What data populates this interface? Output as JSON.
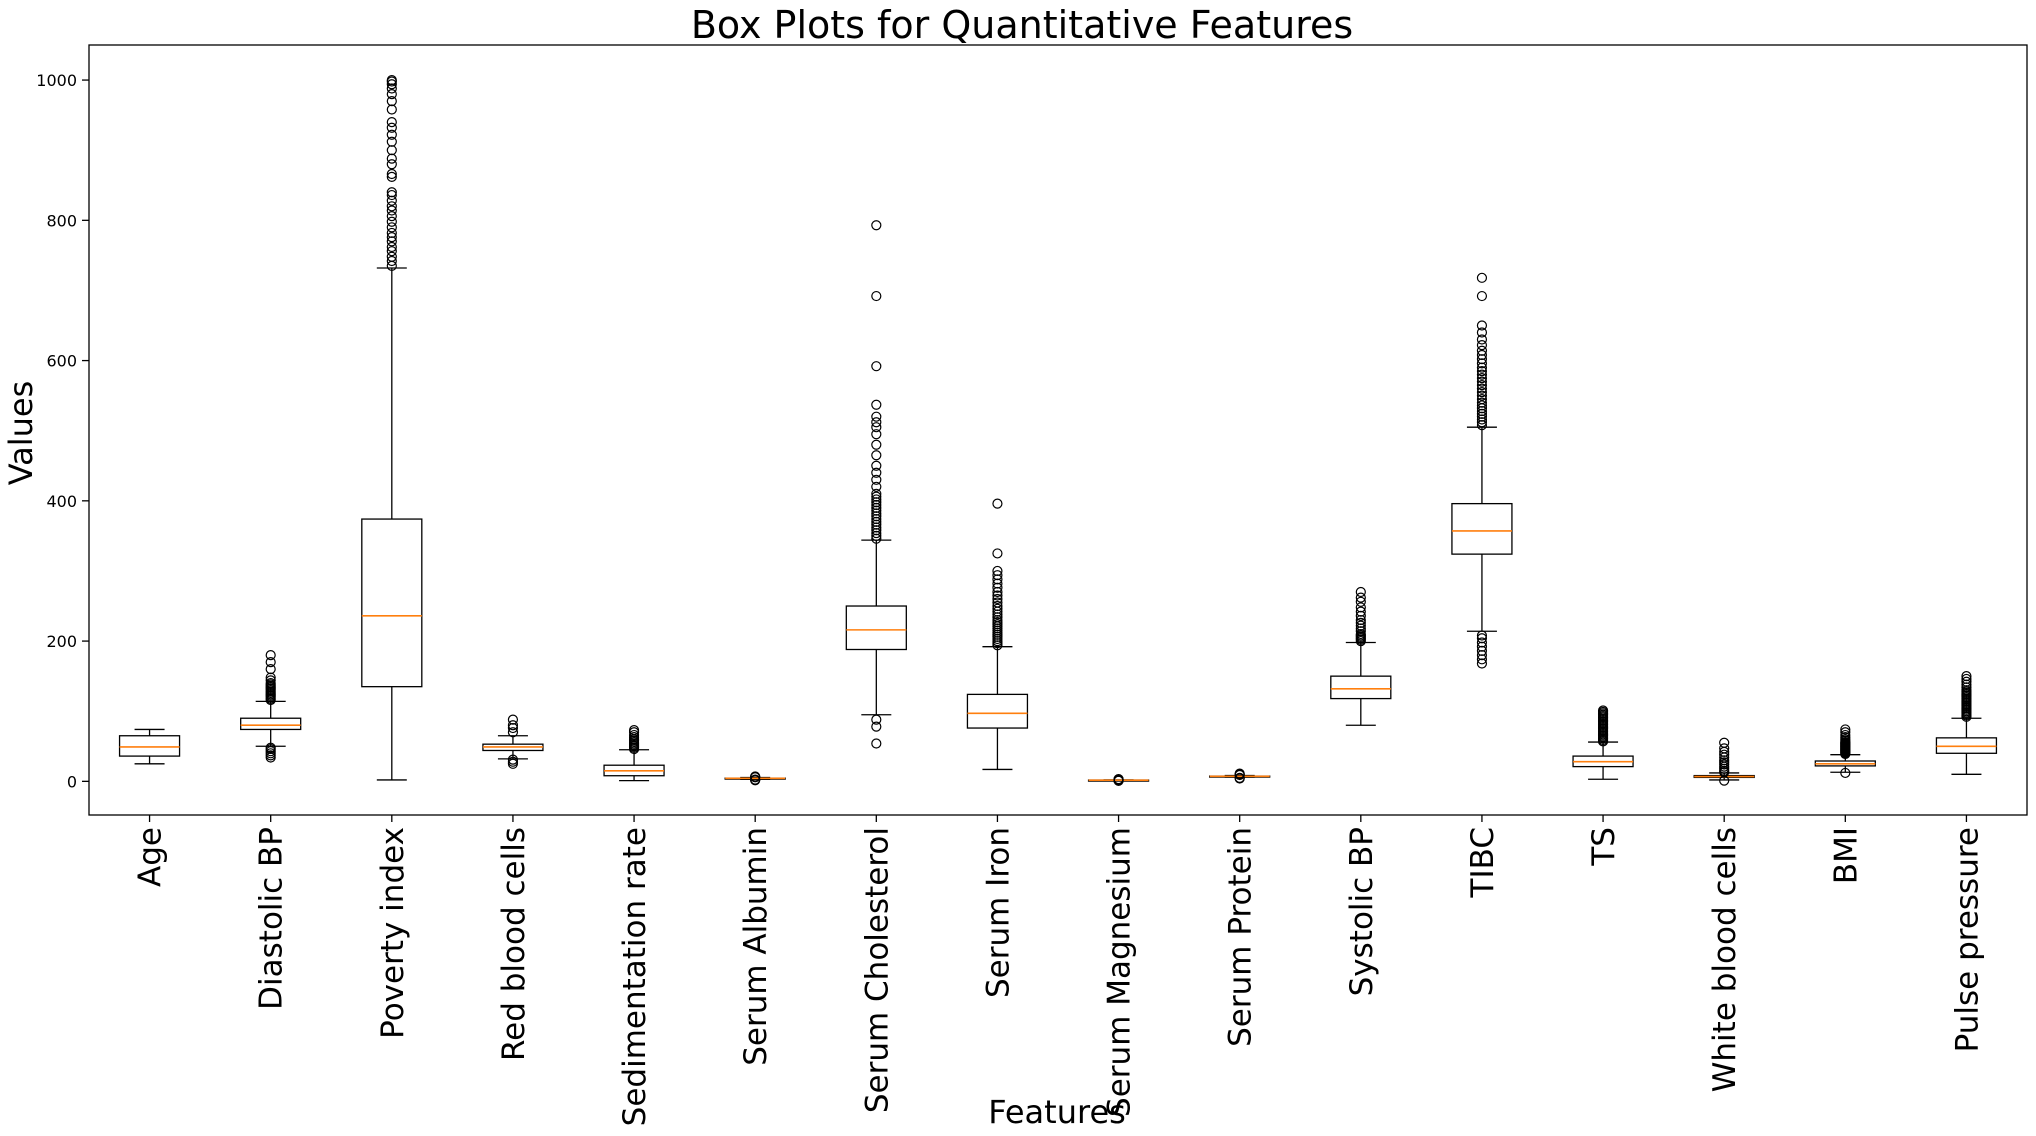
{
  "chart_data": {
    "type": "box",
    "title": "Box Plots for Quantitative Features",
    "xlabel": "Features",
    "ylabel": "Values",
    "ylim": [
      -48,
      1050
    ],
    "yticks": [
      0,
      200,
      400,
      600,
      800,
      1000
    ],
    "grid": false,
    "colors": {
      "box": "#000000",
      "median": "#ff7f0e",
      "flier": "#000000"
    },
    "categories": [
      "Age",
      "Diastolic BP",
      "Poverty index",
      "Red blood cells",
      "Sedimentation rate",
      "Serum Albumin",
      "Serum Cholesterol",
      "Serum Iron",
      "Serum Magnesium",
      "Serum Protein",
      "Systolic BP",
      "TIBC",
      "TS",
      "White blood cells",
      "BMI",
      "Pulse pressure"
    ],
    "series": [
      {
        "q1": 36,
        "median": 49,
        "q3": 65,
        "whisker_low": 25,
        "whisker_high": 74,
        "outliers": []
      },
      {
        "q1": 74,
        "median": 80,
        "q3": 90,
        "whisker_low": 50,
        "whisker_high": 114,
        "outliers": [
          34,
          37,
          40,
          43,
          46,
          48,
          116,
          118,
          120,
          122,
          124,
          126,
          128,
          130,
          132,
          134,
          136,
          138,
          140,
          144,
          148,
          160,
          170,
          180
        ]
      },
      {
        "q1": 135,
        "median": 236,
        "q3": 374,
        "whisker_low": 2,
        "whisker_high": 732,
        "outliers": [
          735,
          742,
          748,
          756,
          762,
          770,
          776,
          782,
          790,
          798,
          806,
          814,
          820,
          828,
          836,
          840,
          862,
          866,
          880,
          888,
          900,
          912,
          922,
          932,
          940,
          958,
          970,
          980,
          988,
          994,
          998,
          1000
        ]
      },
      {
        "q1": 44,
        "median": 49,
        "q3": 53,
        "whisker_low": 32,
        "whisker_high": 65,
        "outliers": [
          25,
          28,
          31,
          70,
          76,
          80,
          88
        ]
      },
      {
        "q1": 8,
        "median": 15,
        "q3": 23,
        "whisker_low": 1,
        "whisker_high": 45,
        "outliers": [
          46,
          48,
          50,
          52,
          54,
          56,
          58,
          60,
          63,
          66,
          70,
          73
        ]
      },
      {
        "q1": 3.9,
        "median": 4.3,
        "q3": 4.6,
        "whisker_low": 2.8,
        "whisker_high": 5.5,
        "outliers": [
          1.5,
          2,
          2.5,
          5.8,
          6.3,
          7
        ]
      },
      {
        "q1": 188,
        "median": 216,
        "q3": 250,
        "whisker_low": 95,
        "whisker_high": 344,
        "outliers": [
          54,
          78,
          88,
          346,
          350,
          354,
          358,
          362,
          366,
          370,
          374,
          378,
          382,
          386,
          390,
          394,
          398,
          402,
          406,
          410,
          420,
          430,
          440,
          450,
          465,
          480,
          495,
          505,
          512,
          520,
          537,
          592,
          692,
          793
        ]
      },
      {
        "q1": 76,
        "median": 97,
        "q3": 124,
        "whisker_low": 17,
        "whisker_high": 192,
        "outliers": [
          194,
          197,
          200,
          203,
          206,
          209,
          212,
          215,
          218,
          221,
          224,
          227,
          230,
          234,
          238,
          242,
          246,
          250,
          255,
          260,
          265,
          270,
          276,
          282,
          288,
          294,
          300,
          325,
          396
        ]
      },
      {
        "q1": 1.6,
        "median": 1.7,
        "q3": 1.8,
        "whisker_low": 1.3,
        "whisker_high": 2.1,
        "outliers": [
          0.8,
          1,
          2.4,
          2.8,
          3.2
        ]
      },
      {
        "q1": 6.9,
        "median": 7.2,
        "q3": 7.5,
        "whisker_low": 6.1,
        "whisker_high": 8.3,
        "outliers": [
          4,
          5,
          9,
          10,
          11
        ]
      },
      {
        "q1": 118,
        "median": 132,
        "q3": 150,
        "whisker_low": 80,
        "whisker_high": 198,
        "outliers": [
          200,
          202,
          204,
          206,
          208,
          210,
          214,
          218,
          222,
          226,
          230,
          236,
          242,
          248,
          256,
          262,
          270
        ]
      },
      {
        "q1": 324,
        "median": 357,
        "q3": 396,
        "whisker_low": 214,
        "whisker_high": 505,
        "outliers": [
          168,
          174,
          180,
          186,
          192,
          198,
          204,
          208,
          508,
          512,
          516,
          520,
          524,
          528,
          532,
          536,
          540,
          545,
          550,
          555,
          560,
          565,
          570,
          575,
          580,
          585,
          590,
          596,
          602,
          608,
          614,
          622,
          630,
          640,
          650,
          692,
          718
        ]
      },
      {
        "q1": 21,
        "median": 28,
        "q3": 36,
        "whisker_low": 3,
        "whisker_high": 56,
        "outliers": [
          57,
          59,
          61,
          63,
          65,
          67,
          69,
          71,
          73,
          75,
          77,
          79,
          81,
          83,
          85,
          87,
          89,
          91,
          93,
          95,
          97,
          99,
          101
        ]
      },
      {
        "q1": 5.6,
        "median": 6.8,
        "q3": 8.2,
        "whisker_low": 2,
        "whisker_high": 12,
        "outliers": [
          1,
          13,
          15,
          18,
          21,
          24,
          27,
          30,
          34,
          38,
          42,
          47,
          55
        ]
      },
      {
        "q1": 22,
        "median": 25,
        "q3": 29,
        "whisker_low": 13,
        "whisker_high": 38,
        "outliers": [
          12,
          39,
          40,
          41,
          42,
          43,
          44,
          45,
          46,
          47,
          48,
          49,
          50,
          51,
          52,
          53,
          54,
          55,
          56,
          58,
          60,
          63,
          66,
          70,
          74
        ]
      },
      {
        "q1": 40,
        "median": 50,
        "q3": 62,
        "whisker_low": 10,
        "whisker_high": 90,
        "outliers": [
          92,
          94,
          96,
          98,
          100,
          102,
          104,
          106,
          108,
          110,
          112,
          114,
          116,
          118,
          120,
          122,
          124,
          126,
          128,
          130,
          134,
          138,
          142,
          146,
          150
        ]
      }
    ]
  }
}
